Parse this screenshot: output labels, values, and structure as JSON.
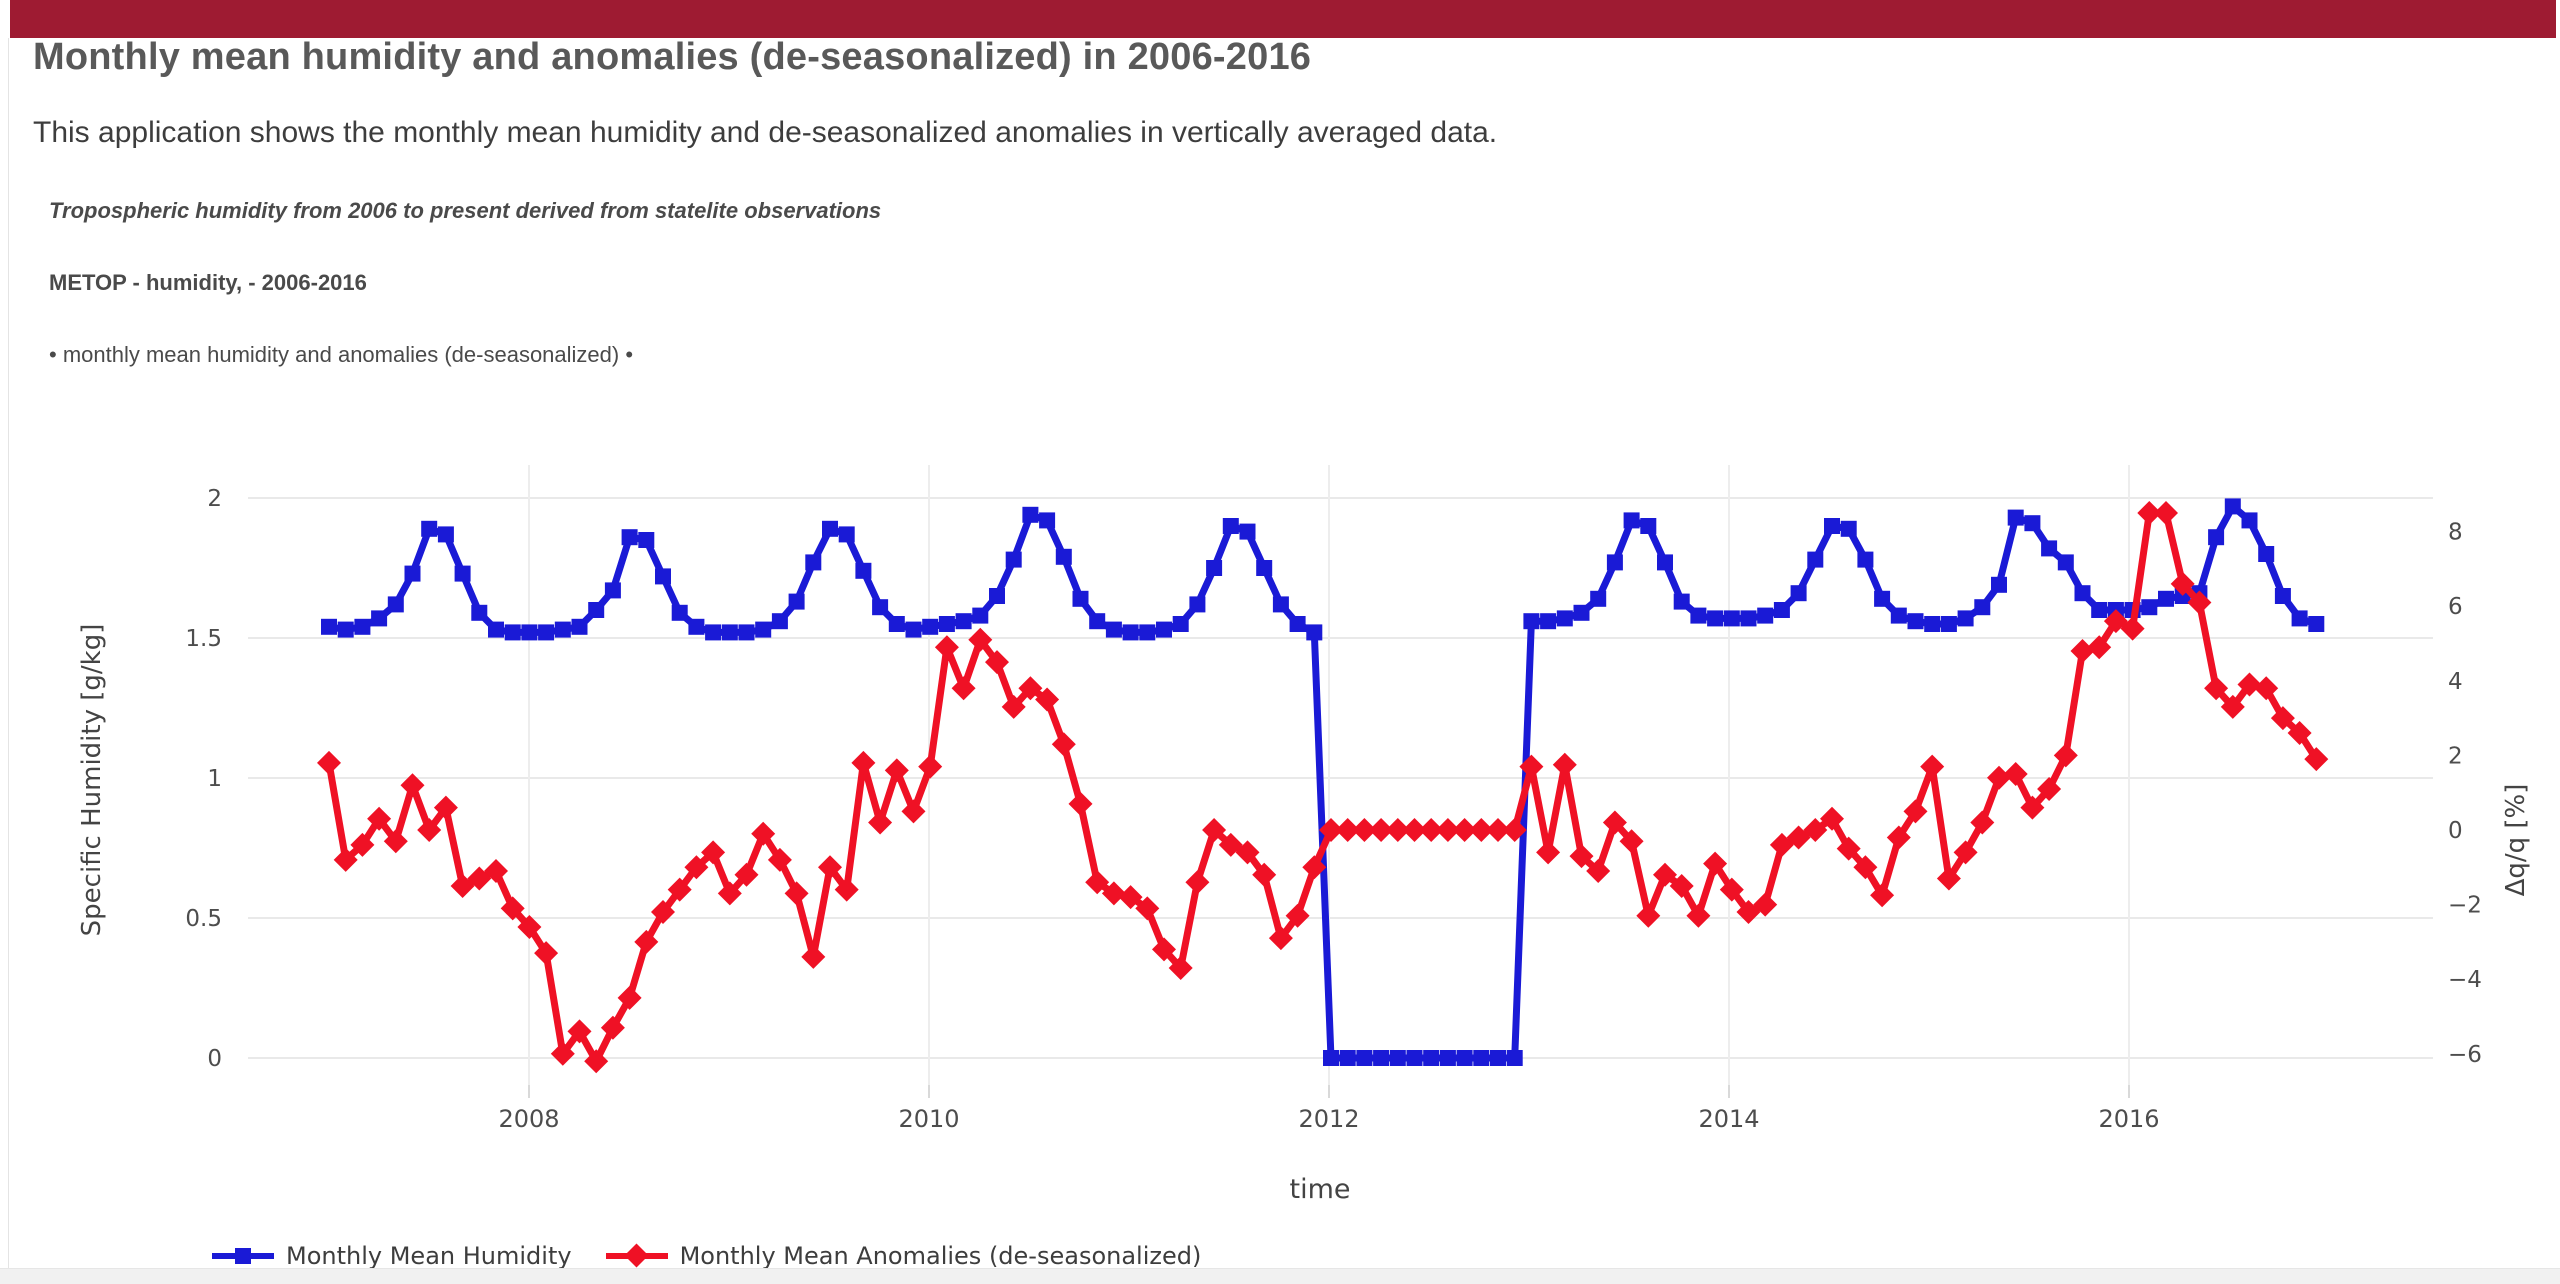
{
  "topbar": {
    "color": "#9e1b32"
  },
  "header": {
    "title": "Monthly mean humidity and anomalies (de-seasonalized) in 2006-2016",
    "subtitle": "This application shows the monthly mean humidity and de-seasonalized anomalies in vertically averaged data.",
    "info_italic": "Tropospheric humidity from 2006 to present derived from statelite observations",
    "info_bold": "METOP - humidity, - 2006-2016",
    "info_bullets": "• monthly mean humidity and anomalies (de-seasonalized) •"
  },
  "chart_data": {
    "type": "line",
    "xlabel": "time",
    "ylabel_left": "Specific Humidity [g/kg]",
    "ylabel_right": "Δq/q [%]",
    "x_ticks": [
      2008,
      2010,
      2012,
      2014,
      2016
    ],
    "y_ticks_left": [
      0,
      0.5,
      1,
      1.5,
      2
    ],
    "y_ticks_right": [
      8,
      6,
      4,
      2,
      0,
      -2,
      -4,
      -6
    ],
    "ylim_left": [
      -0.1,
      2.12
    ],
    "ylim_right": [
      -6.9,
      9.8
    ],
    "x_start_year": 2007,
    "x_start_month": 1,
    "months_per_point": 1,
    "grid": true,
    "legend_position": "bottom-left",
    "colors": {
      "grid": "#e9e9e9",
      "tick_text": "#4d4d4d",
      "axis_title": "#444444"
    },
    "series": [
      {
        "name": "Monthly Mean Humidity",
        "axis": "left",
        "color": "#1a1ad6",
        "marker": "square",
        "values": [
          1.54,
          1.53,
          1.54,
          1.57,
          1.62,
          1.73,
          1.89,
          1.87,
          1.73,
          1.59,
          1.53,
          1.52,
          1.52,
          1.52,
          1.53,
          1.54,
          1.6,
          1.67,
          1.86,
          1.85,
          1.72,
          1.59,
          1.54,
          1.52,
          1.52,
          1.52,
          1.53,
          1.56,
          1.63,
          1.77,
          1.89,
          1.87,
          1.74,
          1.61,
          1.55,
          1.53,
          1.54,
          1.55,
          1.56,
          1.58,
          1.65,
          1.78,
          1.94,
          1.92,
          1.79,
          1.64,
          1.56,
          1.53,
          1.52,
          1.52,
          1.53,
          1.55,
          1.62,
          1.75,
          1.9,
          1.88,
          1.75,
          1.62,
          1.55,
          1.52,
          0,
          0,
          0,
          0,
          0,
          0,
          0,
          0,
          0,
          0,
          0,
          0,
          1.56,
          1.56,
          1.57,
          1.59,
          1.64,
          1.77,
          1.92,
          1.9,
          1.77,
          1.63,
          1.58,
          1.57,
          1.57,
          1.57,
          1.58,
          1.6,
          1.66,
          1.78,
          1.9,
          1.89,
          1.78,
          1.64,
          1.58,
          1.56,
          1.55,
          1.55,
          1.57,
          1.61,
          1.69,
          1.93,
          1.91,
          1.82,
          1.77,
          1.66,
          1.6,
          1.6,
          1.6,
          1.61,
          1.64,
          1.65,
          1.66,
          1.86,
          1.97,
          1.92,
          1.8,
          1.65,
          1.57,
          1.55
        ]
      },
      {
        "name": "Monthly Mean Anomalies (de-seasonalized)",
        "axis": "right",
        "color": "#ef1125",
        "marker": "diamond",
        "values": [
          1.8,
          -0.8,
          -0.4,
          0.3,
          -0.3,
          1.2,
          0,
          0.6,
          -1.5,
          -1.3,
          -1.1,
          -2.1,
          -2.6,
          -3.3,
          -6,
          -5.4,
          -6.2,
          -5.3,
          -4.5,
          -3,
          -2.2,
          -1.6,
          -1,
          -0.6,
          -1.7,
          -1.2,
          -0.1,
          -0.8,
          -1.7,
          -3.4,
          -1,
          -1.6,
          1.8,
          0.2,
          1.6,
          0.5,
          1.7,
          4.9,
          3.8,
          5.1,
          4.5,
          3.3,
          3.8,
          3.5,
          2.3,
          0.7,
          -1.4,
          -1.7,
          -1.8,
          -2.1,
          -3.2,
          -3.7,
          -1.4,
          0,
          -0.4,
          -0.6,
          -1.2,
          -2.9,
          -2.3,
          -1,
          0,
          0,
          0,
          0,
          0,
          0,
          0,
          0,
          0,
          0,
          0,
          0,
          1.7,
          -0.6,
          1.75,
          -0.7,
          -1.1,
          0.2,
          -0.3,
          -2.3,
          -1.2,
          -1.5,
          -2.3,
          -0.9,
          -1.6,
          -2.2,
          -2,
          -0.4,
          -0.2,
          0,
          0.3,
          -0.5,
          -1,
          -1.75,
          -0.2,
          0.5,
          1.7,
          -1.3,
          -0.6,
          0.2,
          1.4,
          1.5,
          0.6,
          1.1,
          2,
          4.8,
          4.9,
          5.6,
          5.4,
          8.5,
          8.5,
          6.6,
          6.1,
          3.8,
          3.3,
          3.9,
          3.8,
          3,
          2.6,
          1.9
        ]
      }
    ]
  }
}
